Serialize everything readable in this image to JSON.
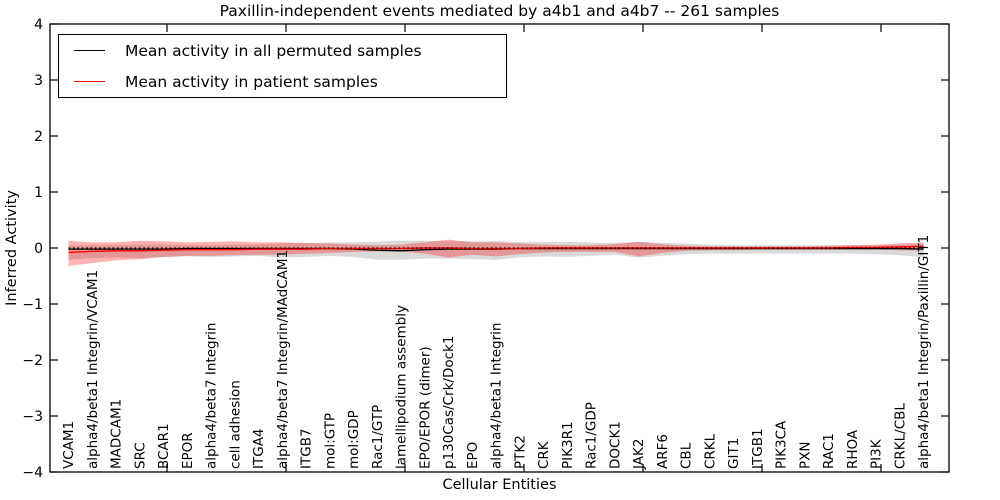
{
  "title": "Paxillin-independent events mediated by a4b1 and a4b7 -- 261 samples",
  "xlabel": "Cellular Entities",
  "ylabel": "Inferred Activity",
  "legend": {
    "entries": [
      {
        "label": "Mean activity in all permuted samples",
        "color": "#000000"
      },
      {
        "label": "Mean activity in patient samples",
        "color": "#ff0000"
      }
    ]
  },
  "colors": {
    "permuted_line": "#000000",
    "patient_line": "#ff0000",
    "permuted_band": "rgba(128,128,128,0.30)",
    "patient_band": "rgba(255,0,0,0.30)",
    "zero_line": "#000000",
    "frame": "#000000"
  },
  "y_tick_labels": [
    "4",
    "3",
    "2",
    "1",
    "0",
    "−1",
    "−2",
    "−3",
    "−4"
  ],
  "y_tick_values": [
    4,
    3,
    2,
    1,
    0,
    -1,
    -2,
    -3,
    -4
  ],
  "chart_data": {
    "type": "line",
    "title": "Paxillin-independent events mediated by a4b1 and a4b7 -- 261 samples",
    "xlabel": "Cellular Entities",
    "ylabel": "Inferred Activity",
    "ylim": [
      -4,
      4
    ],
    "grid": false,
    "legend_position": "upper left",
    "zero_reference_line": 0,
    "categories": [
      "VCAM1",
      "alpha4/beta1 Integrin/VCAM1",
      "MADCAM1",
      "SRC",
      "BCAR1",
      "EPOR",
      "alpha4/beta7 Integrin",
      "cell adhesion",
      "ITGA4",
      "alpha4/beta7 Integrin/MAdCAM1",
      "ITGB7",
      "mol:GTP",
      "mol:GDP",
      "Rac1/GTP",
      "lamellipodium assembly",
      "EPO/EPOR (dimer)",
      "p130Cas/Crk/Dock1",
      "EPO",
      "alpha4/beta1 Integrin",
      "PTK2",
      "CRK",
      "PIK3R1",
      "Rac1/GDP",
      "DOCK1",
      "JAK2",
      "ARF6",
      "CBL",
      "CRKL",
      "GIT1",
      "ITGB1",
      "PIK3CA",
      "PXN",
      "RAC1",
      "RHOA",
      "PI3K",
      "CRKL/CBL",
      "alpha4/beta1 Integrin/Paxillin/GIT1"
    ],
    "series": [
      {
        "name": "Mean activity in all permuted samples",
        "color": "#000000",
        "values": [
          -0.02,
          -0.02,
          -0.02,
          -0.02,
          -0.02,
          -0.01,
          -0.01,
          -0.01,
          -0.01,
          -0.01,
          -0.01,
          -0.01,
          -0.02,
          -0.04,
          -0.05,
          -0.03,
          -0.02,
          -0.02,
          -0.02,
          -0.01,
          -0.01,
          -0.01,
          -0.01,
          -0.01,
          -0.01,
          -0.01,
          -0.01,
          -0.01,
          -0.01,
          -0.01,
          -0.01,
          -0.01,
          -0.01,
          -0.01,
          -0.01,
          -0.01,
          -0.02
        ],
        "band_upper": [
          0.05,
          0.05,
          0.05,
          0.06,
          0.06,
          0.05,
          0.05,
          0.06,
          0.06,
          0.09,
          0.09,
          0.1,
          0.1,
          0.11,
          0.13,
          0.13,
          0.12,
          0.12,
          0.12,
          0.11,
          0.11,
          0.11,
          0.1,
          0.09,
          0.11,
          0.09,
          0.08,
          0.06,
          0.05,
          0.05,
          0.05,
          0.05,
          0.05,
          0.05,
          0.05,
          0.06,
          0.07
        ],
        "band_lower": [
          -0.21,
          -0.18,
          -0.17,
          -0.18,
          -0.16,
          -0.15,
          -0.16,
          -0.15,
          -0.14,
          -0.17,
          -0.16,
          -0.14,
          -0.16,
          -0.21,
          -0.21,
          -0.19,
          -0.19,
          -0.2,
          -0.21,
          -0.17,
          -0.15,
          -0.16,
          -0.14,
          -0.12,
          -0.17,
          -0.14,
          -0.11,
          -0.1,
          -0.1,
          -0.1,
          -0.1,
          -0.1,
          -0.1,
          -0.1,
          -0.11,
          -0.13,
          -0.16
        ]
      },
      {
        "name": "Mean activity in patient samples",
        "color": "#ff0000",
        "values": [
          -0.08,
          -0.06,
          -0.05,
          -0.05,
          -0.04,
          -0.03,
          -0.03,
          -0.03,
          -0.02,
          -0.02,
          -0.02,
          -0.01,
          -0.01,
          -0.01,
          -0.01,
          0,
          0,
          -0.01,
          -0.01,
          -0.01,
          0,
          0,
          0,
          0,
          0,
          0,
          0,
          0,
          0,
          0,
          0,
          0,
          0,
          0.01,
          0.01,
          0.02,
          0.03
        ],
        "band_upper": [
          0.13,
          0.1,
          0.1,
          0.13,
          0.12,
          0.1,
          0.11,
          0.12,
          0.1,
          0.1,
          0.09,
          0.08,
          0.06,
          0.05,
          0.06,
          0.1,
          0.15,
          0.1,
          0.1,
          0.08,
          0.06,
          0.05,
          0.05,
          0.07,
          0.11,
          0.07,
          0.04,
          0.03,
          0.03,
          0.03,
          0.03,
          0.03,
          0.04,
          0.05,
          0.06,
          0.08,
          0.1
        ],
        "band_lower": [
          -0.32,
          -0.27,
          -0.22,
          -0.2,
          -0.16,
          -0.14,
          -0.14,
          -0.13,
          -0.12,
          -0.12,
          -0.1,
          -0.09,
          -0.07,
          -0.06,
          -0.06,
          -0.1,
          -0.17,
          -0.12,
          -0.15,
          -0.11,
          -0.08,
          -0.07,
          -0.07,
          -0.07,
          -0.15,
          -0.09,
          -0.05,
          -0.04,
          -0.04,
          -0.03,
          -0.03,
          -0.03,
          -0.03,
          -0.03,
          -0.03,
          -0.04,
          -0.05
        ]
      }
    ]
  }
}
